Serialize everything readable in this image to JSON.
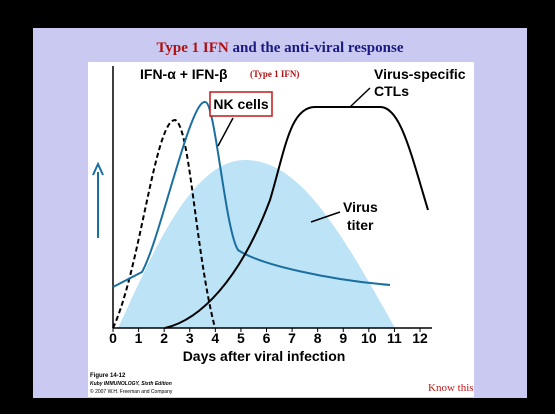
{
  "title": {
    "highlight": "Type 1 IFN",
    "rest": "and the anti-viral response"
  },
  "figure": {
    "labels": {
      "ifn": "IFN-α + IFN-β",
      "ifn_note": "(Type 1 IFN)",
      "nk": "NK cells",
      "ctl_1": "Virus-specific",
      "ctl_2": "CTLs",
      "virus_1": "Virus",
      "virus_2": "titer"
    },
    "xticks": [
      0,
      1,
      2,
      3,
      4,
      5,
      6,
      7,
      8,
      9,
      10,
      11,
      12
    ],
    "xlabel": "Days after viral infection"
  },
  "caption": {
    "figure": "Figure 14-12",
    "book": "Kuby IMMUNOLOGY, Sixth Edition",
    "copyright": "© 2007 W.H. Freeman and Company"
  },
  "note": "Know this"
}
